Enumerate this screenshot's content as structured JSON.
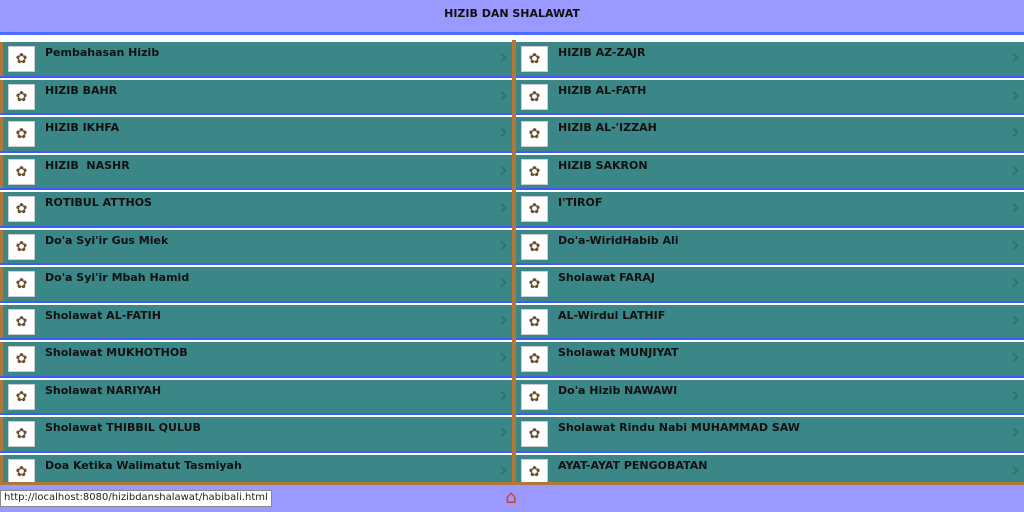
{
  "header": {
    "title": "HIZIB DAN SHALAWAT"
  },
  "left": [
    "Pembahasan Hizib",
    "HIZIB BAHR",
    "HIZIB IKHFA",
    "HIZIB  NASHR",
    "ROTIBUL ATTHOS",
    "Do'a Syi'ir Gus Miek",
    "Do'a Syi'ir Mbah Hamid",
    "Sholawat AL-FATIH",
    "Sholawat MUKHOTHOB",
    "Sholawat NARIYAH",
    "Sholawat THIBBIL QULUB",
    "Doa Ketika Walimatut Tasmiyah"
  ],
  "right": [
    "HIZIB AZ-ZAJR",
    "HIZIB AL-FATH",
    "HIZIB AL-'IZZAH",
    "HIZIB SAKRON",
    "I'TIROF",
    "Do'a-WiridHabib Ali",
    "Sholawat FARAJ",
    "AL-Wirdul LATHIF",
    "Sholawat MUNJIYAT",
    "Do'a Hizib NAWAWI",
    "Sholawat Rindu Nabi MUHAMMAD SAW",
    "AYAT-AYAT PENGOBATAN"
  ],
  "icons": {
    "item": "calligraphy-thumbnail-icon",
    "arrow": "chevron-right-icon",
    "home": "home-icon"
  },
  "status_url": "http://localhost:8080/hizibdanshalawat/habibali.html",
  "colors": {
    "header": "#9999ff",
    "row": "#3b8686",
    "divider": "#b07838",
    "line": "#3a5cff"
  }
}
